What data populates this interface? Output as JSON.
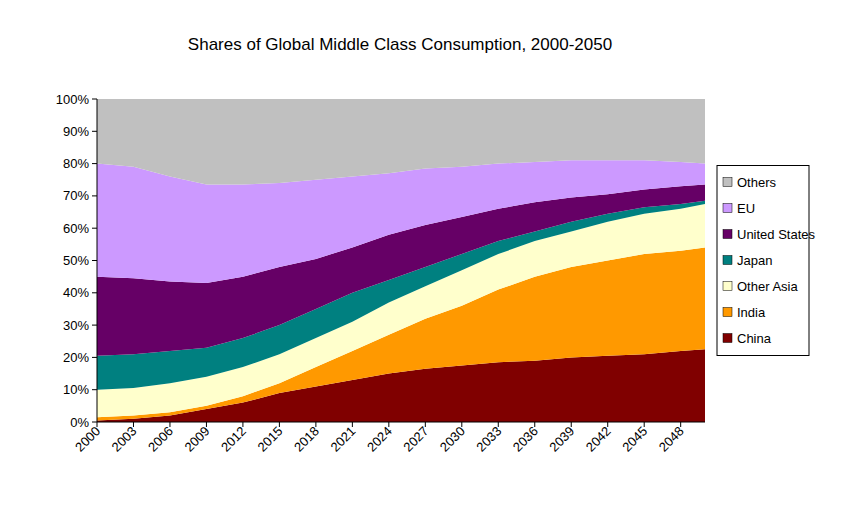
{
  "chart_data": {
    "type": "area",
    "title": "Shares of Global Middle Class Consumption, 2000-2050",
    "stacked": true,
    "legend": "right",
    "grid": false,
    "x": [
      2000,
      2003,
      2006,
      2009,
      2012,
      2015,
      2018,
      2021,
      2024,
      2027,
      2030,
      2033,
      2036,
      2039,
      2042,
      2045,
      2048,
      2050
    ],
    "xlim": [
      2000,
      2050
    ],
    "xticks": [
      2000,
      2003,
      2006,
      2009,
      2012,
      2015,
      2018,
      2021,
      2024,
      2027,
      2030,
      2033,
      2036,
      2039,
      2042,
      2045,
      2048
    ],
    "ylim": [
      0,
      100
    ],
    "yticks": [
      {
        "value": 0,
        "label": "0%"
      },
      {
        "value": 10,
        "label": "10%"
      },
      {
        "value": 20,
        "label": "20%"
      },
      {
        "value": 30,
        "label": "30%"
      },
      {
        "value": 40,
        "label": "40%"
      },
      {
        "value": 50,
        "label": "50%"
      },
      {
        "value": 60,
        "label": "60%"
      },
      {
        "value": 70,
        "label": "70%"
      },
      {
        "value": 80,
        "label": "80%"
      },
      {
        "value": 90,
        "label": "90%"
      },
      {
        "value": 100,
        "label": "100%"
      }
    ],
    "series": [
      {
        "name": "China",
        "color": "#800000",
        "values": [
          0.5,
          1,
          2,
          4,
          6,
          9,
          11,
          13,
          15,
          16.5,
          17.5,
          18.5,
          19,
          20,
          20.5,
          21,
          22,
          22.5
        ]
      },
      {
        "name": "India",
        "color": "#ff9900",
        "values": [
          1,
          1,
          1,
          1,
          2,
          3,
          6,
          9,
          12,
          15.5,
          18.5,
          22.5,
          26,
          28,
          29.5,
          31,
          31,
          31.5
        ]
      },
      {
        "name": "Other Asia",
        "color": "#ffffcc",
        "values": [
          8.5,
          8.5,
          9,
          9,
          9,
          9,
          9,
          9,
          10,
          10,
          11,
          11,
          11,
          11,
          12,
          12.5,
          13,
          13.5
        ]
      },
      {
        "name": "Japan",
        "color": "#008080",
        "values": [
          10.5,
          10.5,
          10,
          9,
          9,
          9,
          9,
          9,
          7,
          6,
          5,
          4,
          3,
          3,
          2.5,
          2,
          1.5,
          1
        ]
      },
      {
        "name": "United States",
        "color": "#660066",
        "values": [
          24.5,
          23.5,
          21.5,
          20,
          19,
          18,
          15.5,
          14,
          14,
          13,
          11.5,
          10,
          9,
          7.5,
          6,
          5.5,
          5.5,
          5
        ]
      },
      {
        "name": "EU",
        "color": "#cc99ff",
        "values": [
          35,
          34.5,
          32.5,
          30.5,
          28.5,
          26,
          24.5,
          22,
          19,
          17.5,
          15.5,
          14,
          12.5,
          11.5,
          10.5,
          9,
          7.5,
          6.5
        ]
      },
      {
        "name": "Others",
        "color": "#c0c0c0",
        "values": [
          20,
          21,
          24,
          26.5,
          26.5,
          26,
          25,
          24,
          23,
          21.5,
          21,
          20,
          19.5,
          19,
          19,
          19,
          19.5,
          20
        ]
      }
    ]
  }
}
